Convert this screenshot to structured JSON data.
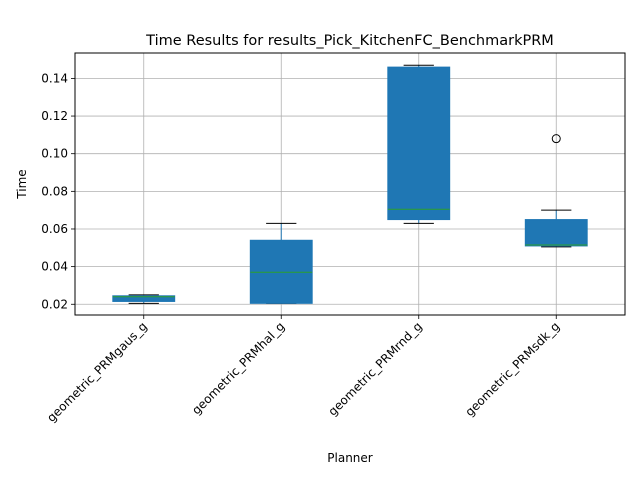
{
  "chart_data": {
    "type": "box",
    "title": "Time Results for results_Pick_KitchenFC_BenchmarkPRM",
    "xlabel": "Planner",
    "ylabel": "Time",
    "categories": [
      "geometric_PRMgaus_g",
      "geometric_PRMhal_g",
      "geometric_PRMrnd_g",
      "geometric_PRMsdk_g"
    ],
    "boxes": [
      {
        "whisker_low": 0.0205,
        "q1": 0.0215,
        "median": 0.024,
        "q3": 0.0245,
        "whisker_high": 0.025,
        "outliers": []
      },
      {
        "whisker_low": 0.0205,
        "q1": 0.0205,
        "median": 0.037,
        "q3": 0.054,
        "whisker_high": 0.063,
        "outliers": []
      },
      {
        "whisker_low": 0.063,
        "q1": 0.065,
        "median": 0.0705,
        "q3": 0.146,
        "whisker_high": 0.147,
        "outliers": []
      },
      {
        "whisker_low": 0.0505,
        "q1": 0.051,
        "median": 0.0515,
        "q3": 0.065,
        "whisker_high": 0.07,
        "outliers": [
          0.108
        ]
      }
    ],
    "yticks": [
      0.02,
      0.04,
      0.06,
      0.08,
      0.1,
      0.12,
      0.14
    ],
    "ytick_labels": [
      "0.02",
      "0.04",
      "0.06",
      "0.08",
      "0.10",
      "0.12",
      "0.14"
    ],
    "ylim": [
      0.0143,
      0.1535
    ],
    "grid": true,
    "colors": {
      "box_fill": "#1f77b4",
      "median": "#2ca02c",
      "grid": "#b0b0b0",
      "axis": "#000000"
    }
  }
}
